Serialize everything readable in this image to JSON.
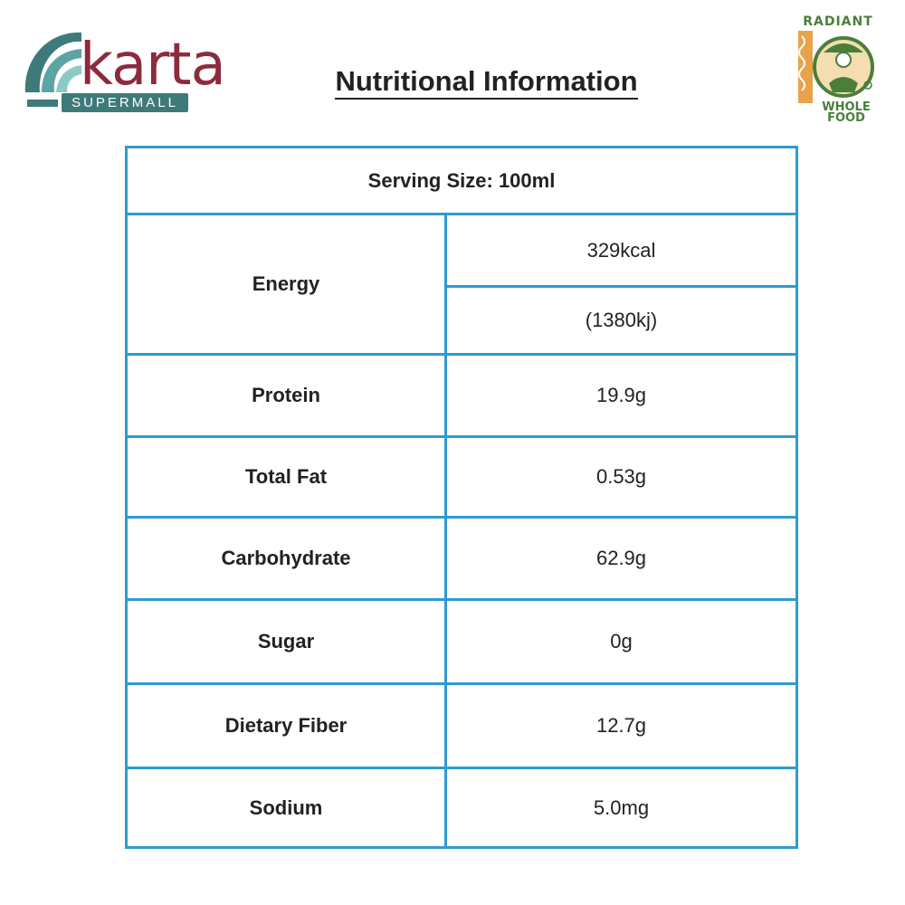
{
  "logos": {
    "left_brand": "karta",
    "left_tagline": "SUPERMALL",
    "right_brand_top": "RADIANT",
    "right_brand_bottom_line1": "WHOLE",
    "right_brand_bottom_line2": "FOOD"
  },
  "title": "Nutritional Information",
  "table": {
    "serving_size": "Serving Size: 100ml",
    "energy": {
      "label": "Energy",
      "kcal": "329kcal",
      "kj": "(1380kj)"
    },
    "rows": [
      {
        "label": "Protein",
        "value": "19.9g"
      },
      {
        "label": "Total Fat",
        "value": "0.53g"
      },
      {
        "label": "Carbohydrate",
        "value": "62.9g"
      },
      {
        "label": "Sugar",
        "value": "0g"
      },
      {
        "label": "Dietary Fiber",
        "value": "12.7g"
      },
      {
        "label": "Sodium",
        "value": "5.0mg"
      }
    ]
  },
  "colors": {
    "border": "#2e9bd1",
    "karta_text": "#8b2b3c",
    "karta_wave": "#3e7a7a",
    "radiant_green": "#4a7f3a",
    "radiant_orange": "#e8a34a"
  }
}
